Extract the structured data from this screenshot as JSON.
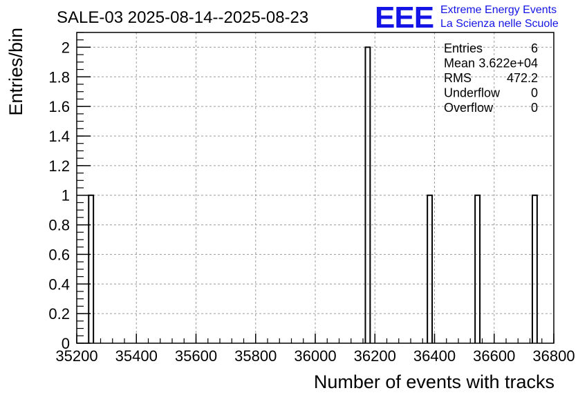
{
  "title": "SALE-03 2025-08-14--2025-08-23",
  "logo": {
    "mark": "EEE",
    "line1": "Extreme Energy Events",
    "line2": "La Scienza nelle Scuole",
    "color": "#1414e6"
  },
  "stats": [
    {
      "label": "Entries",
      "value": "6"
    },
    {
      "label": "Mean",
      "value": "3.622e+04"
    },
    {
      "label": "RMS",
      "value": "472.2"
    },
    {
      "label": "Underflow",
      "value": "0"
    },
    {
      "label": "Overflow",
      "value": "0"
    }
  ],
  "chart_data": {
    "type": "bar",
    "title": "SALE-03 2025-08-14--2025-08-23",
    "xlabel": "Number of events with tracks",
    "ylabel": "Entries/bin",
    "xlim": [
      35200,
      36800
    ],
    "ylim": [
      0,
      2.1
    ],
    "grid": true,
    "xticks": [
      35200,
      35400,
      35600,
      35800,
      36000,
      36200,
      36400,
      36600,
      36800
    ],
    "yticks": [
      0,
      0.2,
      0.4,
      0.6,
      0.8,
      1,
      1.2,
      1.4,
      1.6,
      1.8,
      2
    ],
    "xtick_labels": [
      "35200",
      "35400",
      "35600",
      "35800",
      "36000",
      "36200",
      "36400",
      "36600",
      "36800"
    ],
    "ytick_labels": [
      "0",
      "0.2",
      "0.4",
      "0.6",
      "0.8",
      "1",
      "1.2",
      "1.4",
      "1.6",
      "1.8",
      "2"
    ],
    "bin_width": 16,
    "bins": [
      {
        "x": 35248,
        "count": 1
      },
      {
        "x": 36176,
        "count": 2
      },
      {
        "x": 36384,
        "count": 1
      },
      {
        "x": 36544,
        "count": 1
      },
      {
        "x": 36736,
        "count": 1
      }
    ]
  }
}
